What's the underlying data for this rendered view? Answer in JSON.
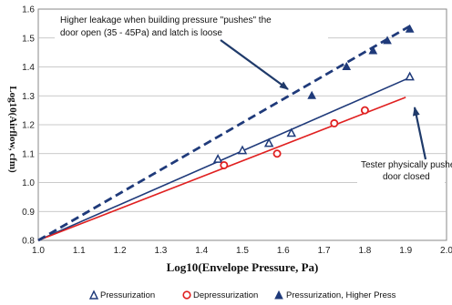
{
  "chart_data": {
    "type": "scatter",
    "xlabel": "Log10(Envelope Pressure, Pa)",
    "ylabel": "Log10(Airflow, cfm)",
    "xlim": [
      1.0,
      2.0
    ],
    "ylim": [
      0.8,
      1.6
    ],
    "xticks": [
      "1.0",
      "1.1",
      "1.2",
      "1.3",
      "1.4",
      "1.5",
      "1.6",
      "1.7",
      "1.8",
      "1.9",
      "2.0"
    ],
    "yticks": [
      "0.8",
      "0.9",
      "1.0",
      "1.1",
      "1.2",
      "1.3",
      "1.4",
      "1.5",
      "1.6"
    ],
    "grid": "horizontal",
    "legend_position": "bottom",
    "series": [
      {
        "name": "Pressurization",
        "marker": "open-triangle",
        "color": "#1f3a7a",
        "x": [
          1.44,
          1.5,
          1.565,
          1.62,
          1.91
        ],
        "y": [
          1.08,
          1.11,
          1.135,
          1.17,
          1.365
        ]
      },
      {
        "name": "Depressurization",
        "marker": "open-circle",
        "color": "#e02020",
        "x": [
          1.455,
          1.585,
          1.725,
          1.8
        ],
        "y": [
          1.06,
          1.1,
          1.205,
          1.25
        ]
      },
      {
        "name": "Pressurization, Higher Press",
        "marker": "filled-triangle",
        "color": "#1f3a7a",
        "x": [
          1.67,
          1.755,
          1.82,
          1.855,
          1.91
        ],
        "y": [
          1.3,
          1.4,
          1.455,
          1.49,
          1.53
        ]
      }
    ],
    "fit_lines": [
      {
        "color": "#1f3a7a",
        "style": "solid",
        "x": [
          1.0,
          1.905
        ],
        "y": [
          0.8,
          1.36
        ]
      },
      {
        "color": "#e02020",
        "style": "solid",
        "x": [
          1.0,
          1.9
        ],
        "y": [
          0.8,
          1.295
        ]
      },
      {
        "color": "#1f3a7a",
        "style": "dashed",
        "x": [
          1.0,
          1.915
        ],
        "y": [
          0.8,
          1.545
        ]
      }
    ],
    "annotations": [
      {
        "lines": [
          "Higher leakage when building pressure \"pushes\" the",
          "door open (35 - 45Pa) and latch is loose"
        ],
        "arrow_to": [
          1.61,
          1.3
        ]
      },
      {
        "lines": [
          "Tester physically pushed",
          "door closed"
        ],
        "arrow_to": [
          1.91,
          1.36
        ]
      }
    ]
  }
}
